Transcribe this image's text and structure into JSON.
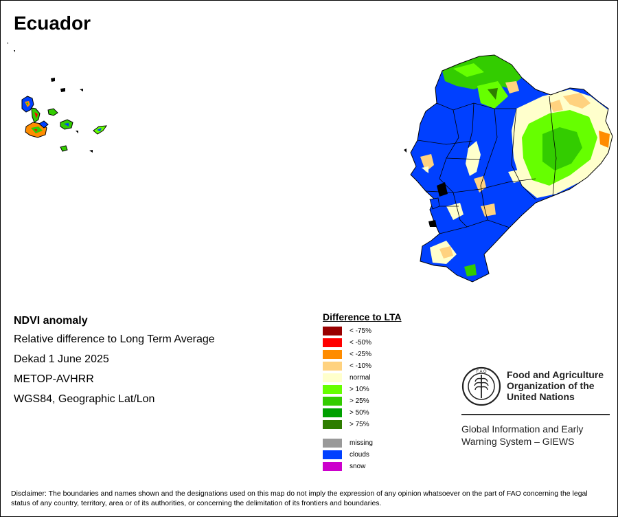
{
  "map": {
    "title": "Ecuador"
  },
  "info": {
    "heading": "NDVI anomaly",
    "lines": [
      "Relative difference to Long Term Average",
      "Dekad 1 June 2025",
      "METOP-AVHRR",
      "WGS84, Geographic Lat/Lon"
    ]
  },
  "legend": {
    "title": "Difference to LTA",
    "items": [
      {
        "label": "< -75%",
        "color": "#990000"
      },
      {
        "label": "< -50%",
        "color": "#ff0000"
      },
      {
        "label": "< -25%",
        "color": "#ff8c00"
      },
      {
        "label": "< -10%",
        "color": "#ffd27f"
      },
      {
        "label": "normal",
        "color": "#ffffcc"
      },
      {
        "label": "> 10%",
        "color": "#66ff00"
      },
      {
        "label": "> 25%",
        "color": "#33cc00"
      },
      {
        "label": "> 50%",
        "color": "#00a000"
      },
      {
        "label": "> 75%",
        "color": "#2e7d00"
      }
    ],
    "extra": [
      {
        "label": "missing",
        "color": "#999999"
      },
      {
        "label": "clouds",
        "color": "#0040ff"
      },
      {
        "label": "snow",
        "color": "#cc00cc"
      }
    ]
  },
  "logo": {
    "lines": [
      "Food and Agriculture",
      "Organization of the",
      "United Nations"
    ],
    "giews_lines": [
      "Global Information and Early",
      "Warning System – GIEWS"
    ]
  },
  "disclaimer": "Disclaimer: The boundaries and names shown and the designations used on this map do not imply the expression of any opinion whatsoever on the part of FAO concerning the legal status of any country, territory, area or of its authorities, or concerning the delimitation of its frontiers and boundaries."
}
